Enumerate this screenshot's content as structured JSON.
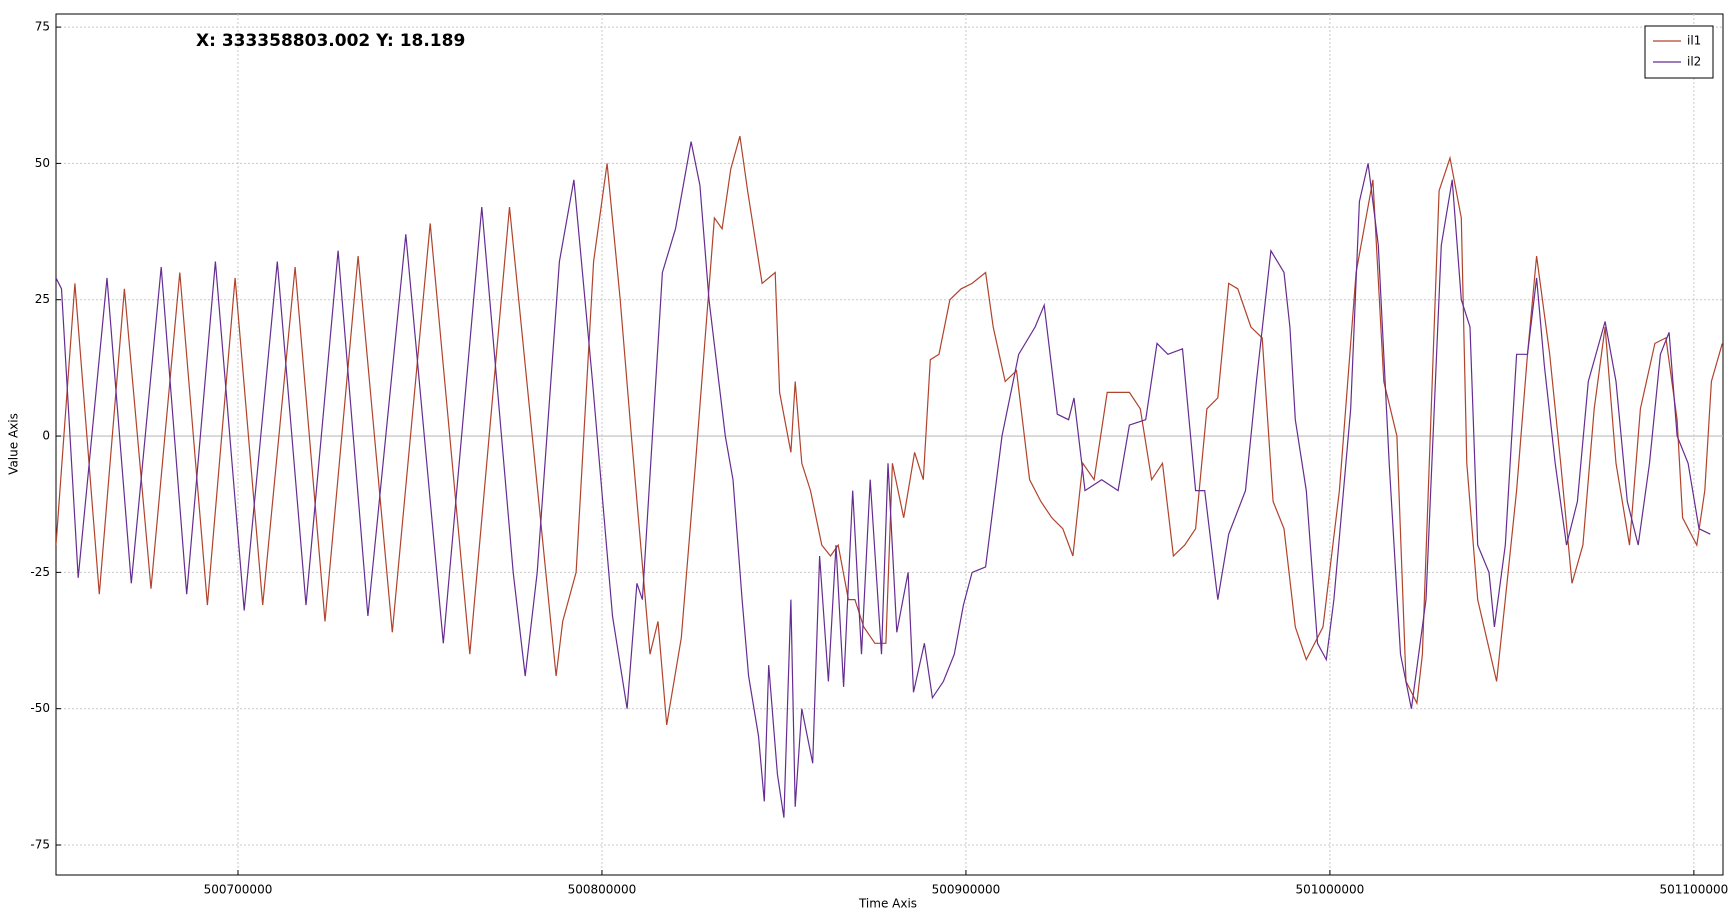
{
  "chart_data": {
    "type": "line",
    "annotation": "X: 333358803.002 Y: 18.189",
    "xlabel": "Time Axis",
    "ylabel": "Value Axis",
    "xlim": [
      500650000,
      501108000
    ],
    "xticks": [
      500700000,
      500800000,
      500900000,
      501000000,
      501100000
    ],
    "ylim": [
      -80.5,
      77.4
    ],
    "yticks": [
      -75,
      -50,
      -25,
      0,
      25,
      50,
      75
    ],
    "grid": true,
    "legend": "upper right",
    "series": [
      {
        "name": "il1",
        "color": "#b0432c",
        "x": [
          500650000,
          500655200,
          500661900,
          500668800,
          500676100,
          500684000,
          500691600,
          500699200,
          500706800,
          500715700,
          500723900,
          500733000,
          500742400,
          500752800,
          500763700,
          500774600,
          500787400,
          500789200,
          500792900,
          500797700,
          500801400,
          500805000,
          500808100,
          500813200,
          500815400,
          500817800,
          500821800,
          500825700,
          500830900,
          500833000,
          500835400,
          500837900,
          500840000,
          500844000,
          500847600,
          500848800,
          500851900,
          500853100,
          500854900,
          500857300,
          500860400,
          500862800,
          500864900,
          500867700,
          500869500,
          500871900,
          500875000,
          500878000,
          500879800,
          500882900,
          500885900,
          500888300,
          500890200,
          500892600,
          500895600,
          500898700,
          500901700,
          500905400,
          500907500,
          500910800,
          500913900,
          500917500,
          500920600,
          500923600,
          500926600,
          500929400,
          500932100,
          500935200,
          500938800,
          500941800,
          500944900,
          500947900,
          500951000,
          500954000,
          500957000,
          500960100,
          500963100,
          500966200,
          500969200,
          500972200,
          500974700,
          500978300,
          500981400,
          500984400,
          500987400,
          500990500,
          500993500,
          500998100,
          501002600,
          501007200,
          501011800,
          501014800,
          501018400,
          501020900,
          501023900,
          501025400,
          501030000,
          501033000,
          501036100,
          501037600,
          501040600,
          501045800,
          501048200,
          501051300,
          501054300,
          501056800,
          501060400,
          501063400,
          501066500,
          501069500,
          501072600,
          501075600,
          501078600,
          501082300,
          501085300,
          501089300,
          501092300,
          501095400,
          501096900,
          501100800,
          501103000,
          501104800,
          501107800
        ],
        "values": [
          -20,
          28,
          -29,
          27,
          -28,
          30,
          -31,
          29,
          -31,
          31,
          -34,
          33,
          -36,
          39,
          -40,
          42,
          -44,
          -34,
          -25,
          32,
          50,
          25,
          0,
          -40,
          -34,
          -53,
          -37,
          -5,
          40,
          38,
          49,
          55,
          45,
          28,
          30,
          8,
          -3,
          10,
          -5,
          -10,
          -20,
          -22,
          -20,
          -30,
          -30,
          -35,
          -38,
          -38,
          -5,
          -15,
          -3,
          -8,
          14,
          15,
          25,
          27,
          28,
          30,
          20,
          10,
          12,
          -8,
          -12,
          -15,
          -17,
          -22,
          -5,
          -8,
          8,
          8,
          8,
          5,
          -8,
          -5,
          -22,
          -20,
          -17,
          5,
          7,
          28,
          27,
          20,
          18,
          -12,
          -17,
          -35,
          -41,
          -35,
          -10,
          30,
          47,
          10,
          0,
          -45,
          -49,
          -40,
          45,
          51,
          40,
          -5,
          -30,
          -45,
          -30,
          -10,
          15,
          33,
          15,
          -5,
          -27,
          -20,
          5,
          20,
          -5,
          -20,
          5,
          17,
          18,
          3,
          -15,
          -20,
          -10,
          10,
          17
        ]
      },
      {
        "name": "il2",
        "color": "#652d90",
        "x": [
          500650000,
          500651500,
          500656100,
          500664000,
          500670700,
          500678900,
          500685900,
          500693800,
          500701700,
          500710800,
          500718700,
          500727500,
          500735700,
          500746100,
          500756400,
          500767000,
          500775600,
          500778900,
          500782200,
          500788300,
          500792300,
          500797400,
          500802900,
          500806900,
          500809600,
          500811100,
          500816600,
          500820200,
          500824500,
          500826900,
          500829400,
          500833900,
          500836000,
          500838500,
          500840300,
          500843000,
          500844600,
          500845800,
          500848200,
          500850000,
          500851900,
          500853100,
          500854900,
          500857900,
          500859800,
          500862200,
          500864300,
          500866400,
          500868900,
          500871300,
          500873700,
          500876800,
          500878600,
          500881000,
          500884100,
          500885600,
          500888600,
          500890800,
          500893800,
          500896800,
          500899300,
          500901700,
          500905400,
          500909900,
          500914500,
          500919000,
          500921500,
          500925100,
          500928200,
          500929700,
          500932700,
          500937300,
          500941800,
          500944900,
          500949400,
          500952500,
          500955500,
          500959500,
          500963100,
          500965600,
          500969200,
          500972200,
          500976800,
          500979800,
          500983800,
          500987400,
          500989000,
          500990500,
          500993500,
          500996600,
          500999000,
          501001100,
          501005700,
          501008100,
          501010500,
          501013300,
          501016300,
          501019400,
          501022400,
          501026400,
          501030600,
          501033600,
          501036100,
          501038500,
          501040600,
          501043700,
          501045200,
          501048200,
          501051300,
          501054300,
          501056800,
          501058900,
          501061900,
          501065000,
          501068000,
          501071000,
          501075600,
          501078600,
          501081700,
          501084700,
          501087800,
          501090800,
          501093200,
          501095400,
          501098400,
          501101400,
          501104500
        ],
        "values": [
          29,
          27,
          -26,
          29,
          -27,
          31,
          -29,
          32,
          -32,
          32,
          -31,
          34,
          -33,
          37,
          -38,
          42,
          -25,
          -44,
          -25,
          32,
          47,
          10,
          -33,
          -50,
          -27,
          -30,
          30,
          38,
          54,
          46,
          25,
          0,
          -8,
          -30,
          -44,
          -55,
          -67,
          -42,
          -62,
          -70,
          -30,
          -68,
          -50,
          -60,
          -22,
          -45,
          -20,
          -46,
          -10,
          -40,
          -8,
          -40,
          -5,
          -36,
          -25,
          -47,
          -38,
          -48,
          -45,
          -40,
          -31,
          -25,
          -24,
          0,
          15,
          20,
          24,
          4,
          3,
          7,
          -10,
          -8,
          -10,
          2,
          3,
          17,
          15,
          16,
          -10,
          -10,
          -30,
          -18,
          -10,
          10,
          34,
          30,
          20,
          3,
          -10,
          -38,
          -41,
          -30,
          5,
          43,
          50,
          35,
          -5,
          -40,
          -50,
          -30,
          35,
          47,
          25,
          20,
          -20,
          -25,
          -35,
          -20,
          15,
          15,
          29,
          13,
          -5,
          -20,
          -12,
          10,
          21,
          10,
          -12,
          -20,
          -5,
          15,
          19,
          0,
          -5,
          -17,
          -18
        ]
      }
    ]
  }
}
